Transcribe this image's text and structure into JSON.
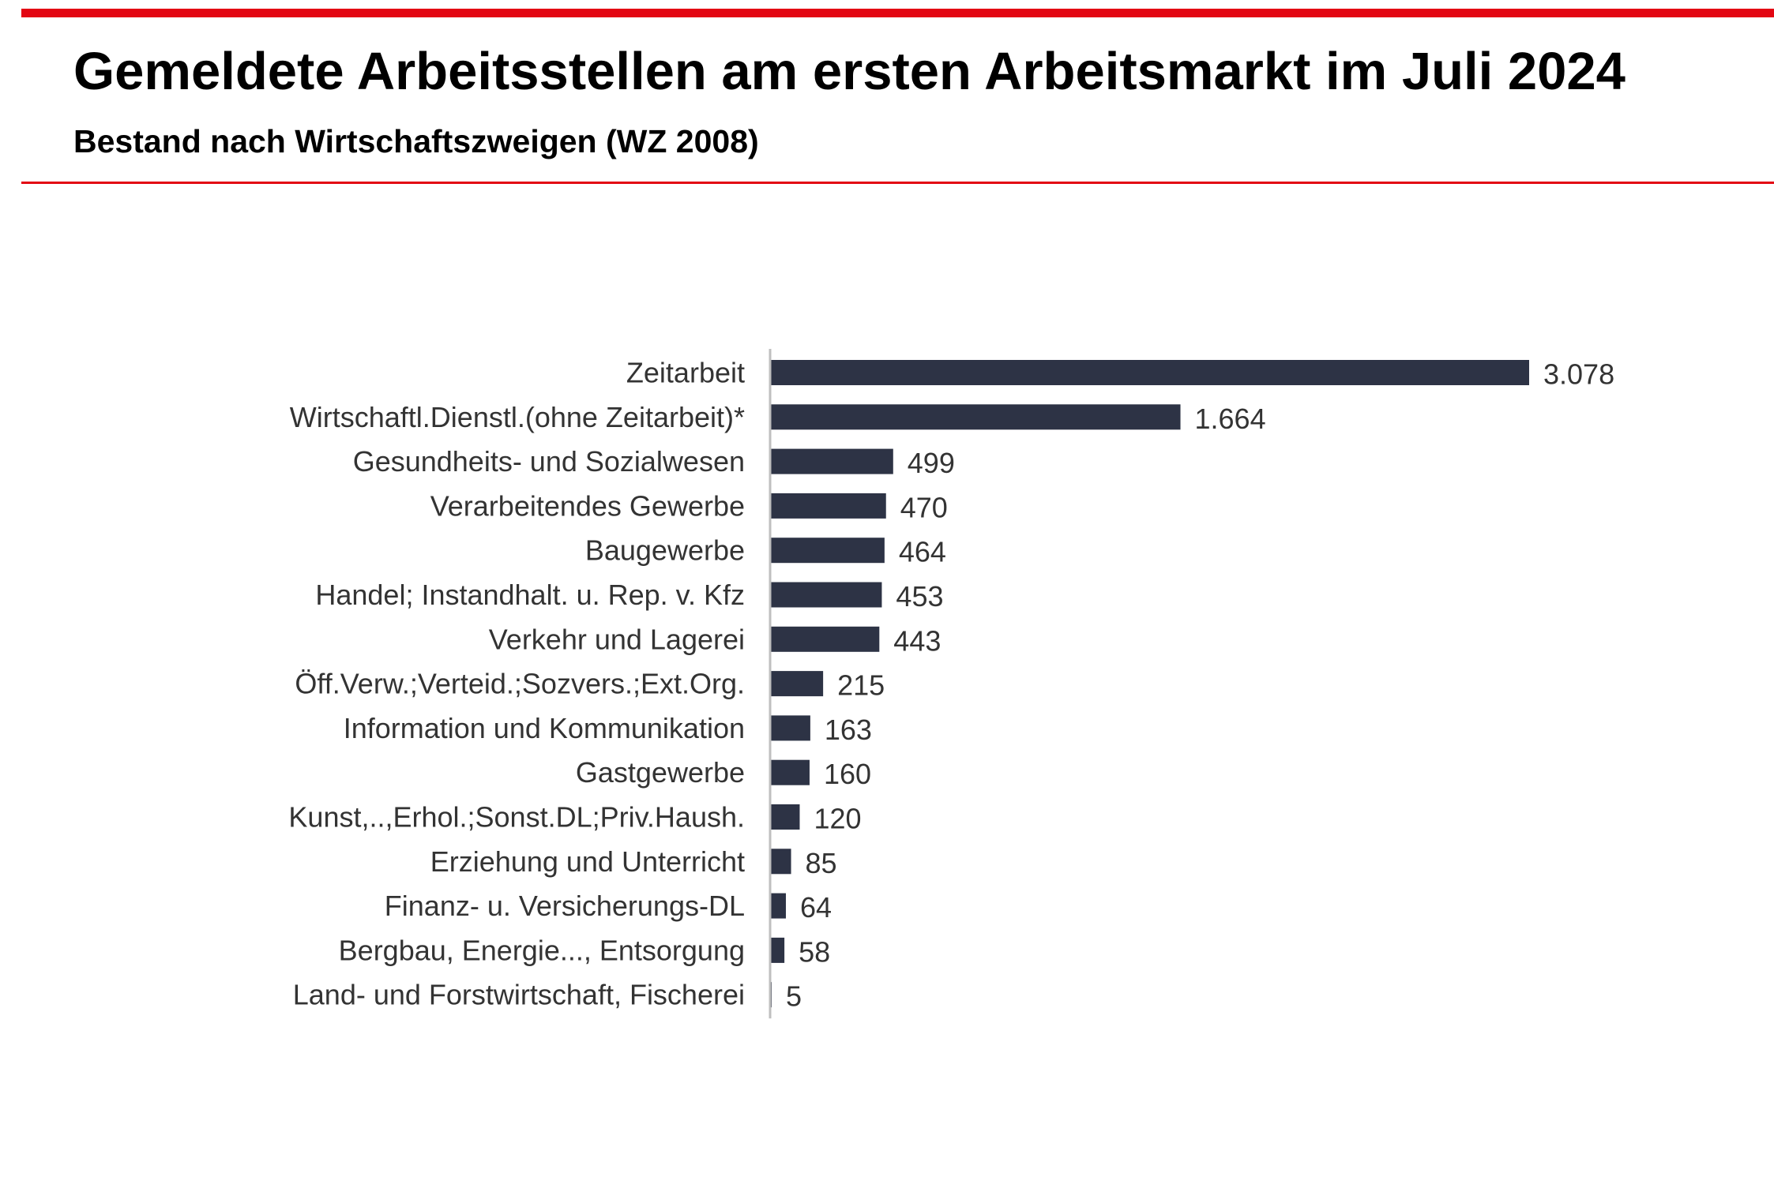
{
  "header": {
    "title": "Gemeldete Arbeitsstellen am ersten Arbeitsmarkt im Juli 2024",
    "subtitle": "Bestand nach Wirtschaftszweigen (WZ 2008)"
  },
  "colors": {
    "accent": "#e30613",
    "bar": "#2d3345",
    "axis": "#bfbfbf",
    "text": "#333333"
  },
  "chart_data": {
    "type": "bar",
    "orientation": "horizontal",
    "title": "Gemeldete Arbeitsstellen am ersten Arbeitsmarkt im Juli 2024",
    "subtitle": "Bestand nach Wirtschaftszweigen (WZ 2008)",
    "xlabel": "",
    "ylabel": "",
    "grid": false,
    "xlim": [
      0,
      3078
    ],
    "categories": [
      "Zeitarbeit",
      "Wirtschaftl.Dienstl.(ohne Zeitarbeit)*",
      "Gesundheits- und Sozialwesen",
      "Verarbeitendes Gewerbe",
      "Baugewerbe",
      "Handel; Instandhalt. u. Rep. v. Kfz",
      "Verkehr und Lagerei",
      "Öff.Verw.;Verteid.;Sozvers.;Ext.Org.",
      "Information und Kommunikation",
      "Gastgewerbe",
      "Kunst,..,Erhol.;Sonst.DL;Priv.Haush.",
      "Erziehung und Unterricht",
      "Finanz- u. Versicherungs-DL",
      "Bergbau, Energie..., Entsorgung",
      "Land- und Forstwirtschaft, Fischerei"
    ],
    "values": [
      3078,
      1664,
      499,
      470,
      464,
      453,
      443,
      215,
      163,
      160,
      120,
      85,
      64,
      58,
      5
    ],
    "value_labels": [
      "3.078",
      "1.664",
      "499",
      "470",
      "464",
      "453",
      "443",
      "215",
      "163",
      "160",
      "120",
      "85",
      "64",
      "58",
      "5"
    ]
  }
}
